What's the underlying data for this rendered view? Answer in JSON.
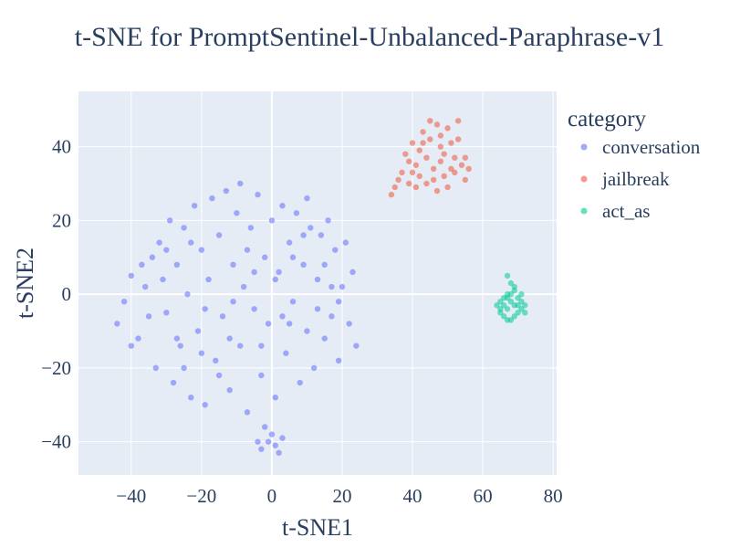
{
  "chart_data": {
    "type": "scatter",
    "title": "t-SNE for PromptSentinel-Unbalanced-Paraphrase-v1",
    "xlabel": "t-SNE1",
    "ylabel": "t-SNE2",
    "xlim": [
      -55,
      81
    ],
    "ylim": [
      -49,
      55
    ],
    "xticks": [
      -40,
      -20,
      0,
      20,
      40,
      60,
      80
    ],
    "yticks": [
      -40,
      -20,
      0,
      20,
      40
    ],
    "xtick_labels": [
      "−40",
      "−20",
      "0",
      "20",
      "40",
      "60",
      "80"
    ],
    "ytick_labels": [
      "−40",
      "−20",
      "0",
      "20",
      "40"
    ],
    "grid": true,
    "plot_bgcolor": "#e5ecf6",
    "legend": {
      "title": "category",
      "position": "right"
    },
    "series": [
      {
        "name": "conversation",
        "color": "#636efa",
        "points": [
          [
            -44,
            -8
          ],
          [
            -42,
            -2
          ],
          [
            -40,
            5
          ],
          [
            -38,
            -12
          ],
          [
            -36,
            2
          ],
          [
            -34,
            10
          ],
          [
            -33,
            -20
          ],
          [
            -32,
            14
          ],
          [
            -30,
            -5
          ],
          [
            -29,
            20
          ],
          [
            -28,
            -24
          ],
          [
            -27,
            8
          ],
          [
            -26,
            -14
          ],
          [
            -25,
            18
          ],
          [
            -24,
            0
          ],
          [
            -23,
            -28
          ],
          [
            -22,
            24
          ],
          [
            -21,
            -10
          ],
          [
            -20,
            12
          ],
          [
            -19,
            -30
          ],
          [
            -18,
            4
          ],
          [
            -17,
            26
          ],
          [
            -16,
            -18
          ],
          [
            -15,
            16
          ],
          [
            -14,
            -6
          ],
          [
            -13,
            28
          ],
          [
            -12,
            -26
          ],
          [
            -11,
            8
          ],
          [
            -10,
            22
          ],
          [
            -9,
            -14
          ],
          [
            -8,
            2
          ],
          [
            -7,
            -32
          ],
          [
            -6,
            18
          ],
          [
            -5,
            -4
          ],
          [
            -4,
            27
          ],
          [
            -3,
            -22
          ],
          [
            -2,
            10
          ],
          [
            -1,
            -8
          ],
          [
            0,
            20
          ],
          [
            1,
            -28
          ],
          [
            2,
            6
          ],
          [
            3,
            24
          ],
          [
            4,
            -16
          ],
          [
            5,
            14
          ],
          [
            6,
            -2
          ],
          [
            7,
            22
          ],
          [
            8,
            -24
          ],
          [
            9,
            8
          ],
          [
            10,
            -10
          ],
          [
            11,
            18
          ],
          [
            12,
            -20
          ],
          [
            13,
            4
          ],
          [
            14,
            16
          ],
          [
            15,
            -12
          ],
          [
            16,
            20
          ],
          [
            17,
            -6
          ],
          [
            18,
            12
          ],
          [
            19,
            -18
          ],
          [
            20,
            2
          ],
          [
            21,
            14
          ],
          [
            22,
            -8
          ],
          [
            23,
            6
          ],
          [
            24,
            -14
          ],
          [
            -35,
            -6
          ],
          [
            -31,
            4
          ],
          [
            -27,
            -12
          ],
          [
            -23,
            14
          ],
          [
            -19,
            -4
          ],
          [
            -15,
            -22
          ],
          [
            -11,
            -2
          ],
          [
            -7,
            12
          ],
          [
            -3,
            -14
          ],
          [
            1,
            4
          ],
          [
            5,
            -8
          ],
          [
            9,
            16
          ],
          [
            13,
            -4
          ],
          [
            17,
            2
          ],
          [
            -37,
            8
          ],
          [
            -20,
            -16
          ],
          [
            -5,
            6
          ],
          [
            10,
            26
          ],
          [
            15,
            8
          ],
          [
            -25,
            -20
          ],
          [
            -12,
            -12
          ],
          [
            3,
            -6
          ],
          [
            -40,
            -14
          ],
          [
            -30,
            12
          ],
          [
            6,
            10
          ],
          [
            19,
            -2
          ],
          [
            -9,
            30
          ],
          [
            -1,
            -40
          ],
          [
            -3,
            -42
          ],
          [
            0,
            -38
          ],
          [
            1,
            -41
          ],
          [
            2,
            -43
          ],
          [
            -2,
            -36
          ],
          [
            -4,
            -40
          ],
          [
            3,
            -39
          ]
        ]
      },
      {
        "name": "jailbreak",
        "color": "#ef553b",
        "points": [
          [
            34,
            27
          ],
          [
            35,
            29
          ],
          [
            37,
            33
          ],
          [
            38,
            38
          ],
          [
            39,
            36
          ],
          [
            40,
            41
          ],
          [
            41,
            35
          ],
          [
            42,
            39
          ],
          [
            43,
            44
          ],
          [
            44,
            37
          ],
          [
            45,
            42
          ],
          [
            46,
            34
          ],
          [
            46,
            31
          ],
          [
            47,
            46
          ],
          [
            48,
            40
          ],
          [
            48,
            36
          ],
          [
            49,
            32
          ],
          [
            50,
            45
          ],
          [
            51,
            41
          ],
          [
            52,
            37
          ],
          [
            53,
            47
          ],
          [
            52,
            33
          ],
          [
            54,
            35
          ],
          [
            55,
            31
          ],
          [
            56,
            34
          ],
          [
            44,
            30
          ],
          [
            42,
            32
          ],
          [
            50,
            29
          ],
          [
            47,
            28
          ],
          [
            39,
            30
          ],
          [
            45,
            47
          ],
          [
            51,
            34
          ],
          [
            53,
            42
          ],
          [
            40,
            33
          ],
          [
            36,
            31
          ],
          [
            48,
            43
          ],
          [
            43,
            41
          ],
          [
            55,
            37
          ],
          [
            41,
            29
          ],
          [
            49,
            38
          ]
        ]
      },
      {
        "name": "act_as",
        "color": "#00cc96",
        "points": [
          [
            64,
            -3
          ],
          [
            65,
            -2
          ],
          [
            65,
            -5
          ],
          [
            66,
            -1
          ],
          [
            66,
            -6
          ],
          [
            67,
            0
          ],
          [
            67,
            -4
          ],
          [
            67,
            5
          ],
          [
            68,
            -2
          ],
          [
            68,
            -7
          ],
          [
            68,
            3
          ],
          [
            69,
            -3
          ],
          [
            69,
            1
          ],
          [
            70,
            -5
          ],
          [
            70,
            -1
          ],
          [
            71,
            -4
          ],
          [
            71,
            -2
          ],
          [
            72,
            -3
          ],
          [
            66,
            -3
          ],
          [
            69,
            -6
          ],
          [
            68,
            0
          ],
          [
            70,
            -3
          ],
          [
            67,
            -7
          ],
          [
            72,
            -5
          ],
          [
            65,
            -4
          ],
          [
            69,
            2
          ],
          [
            71,
            0
          ],
          [
            67,
            -1
          ]
        ]
      }
    ]
  }
}
